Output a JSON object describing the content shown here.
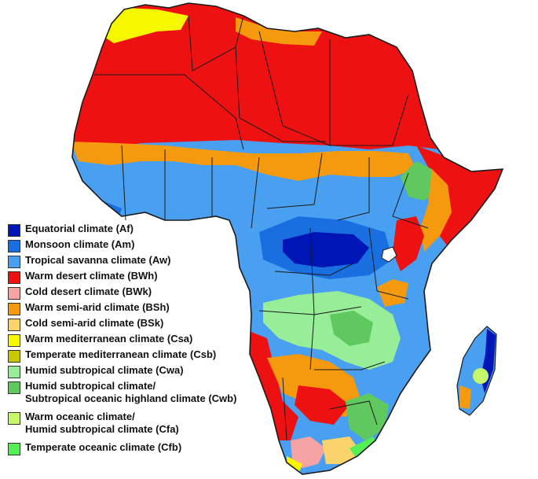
{
  "legend": {
    "items": [
      {
        "label": "Equatorial climate (Af)",
        "color": "#0015b5"
      },
      {
        "label": "Monsoon climate (Am)",
        "color": "#1a6fe0"
      },
      {
        "label": "Tropical savanna climate (Aw)",
        "color": "#4aa0f0"
      },
      {
        "label": "Warm desert climate (BWh)",
        "color": "#ee1111"
      },
      {
        "label": "Cold desert climate (BWk)",
        "color": "#f5a3a3"
      },
      {
        "label": "Warm semi-arid climate (BSh)",
        "color": "#f59a0f"
      },
      {
        "label": "Cold semi-arid climate (BSk)",
        "color": "#fbd36b"
      },
      {
        "label": "Warm mediterranean climate (Csa)",
        "color": "#f7f700"
      },
      {
        "label": "Temperate mediterranean climate (Csb)",
        "color": "#c8c800"
      },
      {
        "label": "Humid subtropical climate (Cwa)",
        "color": "#98ee98"
      },
      {
        "label": "Humid subtropical climate/\nSubtropical oceanic highland climate (Cwb)",
        "color": "#5fc85f"
      },
      {
        "label": "Warm oceanic climate/\nHumid subtropical climate (Cfa)",
        "color": "#c6f76b"
      },
      {
        "label": "Temperate oceanic climate (Cfb)",
        "color": "#55ee55"
      }
    ]
  },
  "map": {
    "zone_colors": {
      "desert": "#ee1111",
      "semi_arid": "#f59a0f",
      "savanna": "#4aa0f0",
      "monsoon": "#1a6fe0",
      "equatorial": "#0015b5",
      "mediterranean": "#f7f700",
      "subtropical": "#98ee98",
      "highland": "#5fc85f",
      "cold_desert": "#f5a3a3",
      "cold_semi_arid": "#fbd36b",
      "oceanic": "#55ee55",
      "warm_oceanic": "#c6f76b",
      "borders": "#1a1a1a"
    }
  }
}
